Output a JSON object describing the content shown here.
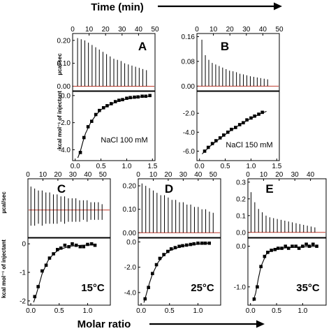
{
  "figure": {
    "top_axis_title": "Time (min)",
    "bottom_axis_title": "Molar ratio",
    "thermogram_ylabel": "µcal/sec",
    "binding_ylabel": "kcal mol⁻¹ of injectant"
  },
  "chart_data": [
    {
      "panel": "A",
      "type": "line",
      "label": "NaCl 100 mM",
      "thermogram": {
        "xlabel": "Time (min)",
        "xlim": [
          0,
          50
        ],
        "xticks": [
          0,
          10,
          20,
          30,
          40,
          50
        ],
        "ylabel": "µcal/sec",
        "ylim": [
          -0.02,
          0.23
        ],
        "yticks": [
          0.0,
          0.1,
          0.2
        ],
        "ytick_labels": [
          "0.00",
          "0.10",
          "0.20"
        ],
        "injection_start_min": 3,
        "injection_interval_min": 2.2,
        "baseline": 0.0,
        "peak_heights": [
          0.21,
          0.205,
          0.2,
          0.19,
          0.18,
          0.17,
          0.16,
          0.15,
          0.14,
          0.13,
          0.12,
          0.115,
          0.11,
          0.1,
          0.095,
          0.09,
          0.085,
          0.08,
          0.075,
          0.07
        ]
      },
      "binding": {
        "xlabel": "Molar ratio",
        "xlim": [
          -0.05,
          1.55
        ],
        "xticks": [
          0.0,
          0.5,
          1.0,
          1.5
        ],
        "ylabel": "kcal mol⁻¹ of injectant",
        "ylim": [
          -4.8,
          0.3
        ],
        "yticks": [
          0.0,
          -2.0,
          -4.0
        ],
        "ytick_labels": [
          "0.0",
          "-2.0",
          "-4.0"
        ],
        "points": [
          [
            0.1,
            -4.2
          ],
          [
            0.17,
            -3.1
          ],
          [
            0.25,
            -2.3
          ],
          [
            0.32,
            -1.9
          ],
          [
            0.4,
            -1.4
          ],
          [
            0.47,
            -1.1
          ],
          [
            0.55,
            -0.9
          ],
          [
            0.62,
            -0.75
          ],
          [
            0.7,
            -0.6
          ],
          [
            0.78,
            -0.45
          ],
          [
            0.85,
            -0.35
          ],
          [
            0.92,
            -0.3
          ],
          [
            1.0,
            -0.2
          ],
          [
            1.07,
            -0.15
          ],
          [
            1.15,
            -0.12
          ],
          [
            1.22,
            -0.1
          ],
          [
            1.3,
            -0.05
          ],
          [
            1.37,
            -0.05
          ],
          [
            1.45,
            0.0
          ]
        ],
        "fit": [
          [
            0.05,
            -4.6
          ],
          [
            0.1,
            -4.1
          ],
          [
            0.15,
            -3.4
          ],
          [
            0.2,
            -2.8
          ],
          [
            0.3,
            -2.0
          ],
          [
            0.4,
            -1.45
          ],
          [
            0.5,
            -1.05
          ],
          [
            0.6,
            -0.8
          ],
          [
            0.8,
            -0.45
          ],
          [
            1.0,
            -0.25
          ],
          [
            1.2,
            -0.12
          ],
          [
            1.45,
            -0.05
          ]
        ]
      }
    },
    {
      "panel": "B",
      "type": "line",
      "label": "NaCl 150 mM",
      "thermogram": {
        "xlabel": "Time (min)",
        "xlim": [
          0,
          50
        ],
        "xticks": [
          0,
          10,
          20,
          30,
          40,
          50
        ],
        "ylabel": "µcal/sec",
        "ylim": [
          -0.015,
          0.17
        ],
        "yticks": [
          0.0,
          0.08,
          0.16
        ],
        "ytick_labels": [
          "0.00",
          "0.08",
          "0.16"
        ],
        "injection_start_min": 3,
        "injection_interval_min": 2.1,
        "baseline": 0.0,
        "peak_heights": [
          0.15,
          0.1,
          0.085,
          0.075,
          0.07,
          0.065,
          0.06,
          0.055,
          0.05,
          0.048,
          0.045,
          0.04,
          0.038,
          0.035,
          0.032,
          0.03,
          0.028,
          0.026,
          0.024,
          0.022
        ]
      },
      "binding": {
        "xlabel": "Molar ratio",
        "xlim": [
          -0.05,
          1.55
        ],
        "xticks": [
          0.0,
          0.5,
          1.0,
          1.5
        ],
        "ylabel": "",
        "ylim": [
          -7.0,
          0.3
        ],
        "yticks": [
          -2.0,
          -4.0,
          -6.0
        ],
        "ytick_labels": [
          "-2.0",
          "-4.0",
          "-6.0"
        ],
        "points": [
          [
            0.1,
            -6.0
          ],
          [
            0.17,
            -5.6
          ],
          [
            0.25,
            -5.2
          ],
          [
            0.32,
            -4.9
          ],
          [
            0.4,
            -4.6
          ],
          [
            0.47,
            -4.3
          ],
          [
            0.55,
            -4.0
          ],
          [
            0.62,
            -3.7
          ],
          [
            0.7,
            -3.5
          ],
          [
            0.78,
            -3.2
          ],
          [
            0.85,
            -3.0
          ],
          [
            0.92,
            -2.7
          ],
          [
            1.0,
            -2.5
          ],
          [
            1.07,
            -2.3
          ],
          [
            1.15,
            -2.1
          ],
          [
            1.22,
            -1.9
          ]
        ],
        "fit": [
          [
            0.05,
            -6.3
          ],
          [
            0.2,
            -5.5
          ],
          [
            0.4,
            -4.65
          ],
          [
            0.6,
            -3.85
          ],
          [
            0.8,
            -3.15
          ],
          [
            1.0,
            -2.55
          ],
          [
            1.2,
            -2.0
          ],
          [
            1.3,
            -1.8
          ]
        ]
      }
    },
    {
      "panel": "C",
      "type": "line",
      "label": "15°C",
      "thermogram": {
        "xlabel": "Time (min)",
        "xlim": [
          0,
          55
        ],
        "xticks": [
          0,
          10,
          20,
          30,
          40,
          50
        ],
        "ylabel": "µcal/sec",
        "ylim": [
          -0.014,
          0.016
        ],
        "yticks": [],
        "ytick_labels": [],
        "injection_start_min": 2,
        "injection_interval_min": 2.5,
        "baseline": 0.0,
        "peak_heights": [
          0.012,
          0.011,
          0.01,
          0.01,
          0.009,
          0.009,
          0.008,
          0.008,
          0.007,
          0.007,
          0.006,
          0.006,
          0.006,
          0.005,
          0.005,
          0.005,
          0.004,
          0.004,
          0.004,
          0.003
        ],
        "negative_depths": [
          -0.008,
          -0.008,
          -0.007,
          -0.008,
          -0.007,
          -0.007,
          -0.007,
          -0.007,
          -0.006,
          -0.007,
          -0.006,
          -0.006,
          -0.006,
          -0.006,
          -0.005,
          -0.006,
          -0.005,
          -0.005,
          -0.005,
          -0.005
        ]
      },
      "binding": {
        "xlabel": "Molar ratio",
        "xlim": [
          -0.05,
          1.4
        ],
        "xticks": [
          0.0,
          0.5,
          1.0
        ],
        "ylabel": "kcal mol⁻¹ of injectant",
        "ylim": [
          -2.15,
          0.2
        ],
        "yticks": [
          0.0,
          -1.0,
          -2.0
        ],
        "ytick_labels": [
          "0",
          "-1",
          "-2"
        ],
        "points": [
          [
            0.07,
            -1.85
          ],
          [
            0.13,
            -1.5
          ],
          [
            0.2,
            -0.95
          ],
          [
            0.27,
            -0.75
          ],
          [
            0.33,
            -0.5
          ],
          [
            0.4,
            -0.35
          ],
          [
            0.47,
            -0.2
          ],
          [
            0.53,
            -0.15
          ],
          [
            0.6,
            -0.05
          ],
          [
            0.67,
            -0.1
          ],
          [
            0.73,
            0.0
          ],
          [
            0.8,
            -0.05
          ],
          [
            0.87,
            -0.1
          ],
          [
            0.93,
            -0.1
          ],
          [
            1.0,
            -0.02
          ],
          [
            1.07,
            0.0
          ],
          [
            1.13,
            -0.05
          ]
        ],
        "fit": [
          [
            0.05,
            -2.05
          ],
          [
            0.1,
            -1.75
          ],
          [
            0.15,
            -1.4
          ],
          [
            0.2,
            -1.05
          ],
          [
            0.3,
            -0.6
          ],
          [
            0.4,
            -0.35
          ],
          [
            0.5,
            -0.2
          ],
          [
            0.7,
            -0.08
          ],
          [
            0.9,
            -0.05
          ],
          [
            1.15,
            -0.03
          ]
        ]
      }
    },
    {
      "panel": "D",
      "type": "line",
      "label": "25°C",
      "thermogram": {
        "xlabel": "Time (min)",
        "xlim": [
          0,
          55
        ],
        "xticks": [
          0,
          10,
          20,
          30,
          40,
          50
        ],
        "ylabel": "µcal/sec",
        "ylim": [
          -0.02,
          0.23
        ],
        "yticks": [
          0.0,
          0.1,
          0.2
        ],
        "ytick_labels": [
          "0.00",
          "0.10",
          "0.20"
        ],
        "injection_start_min": 2.5,
        "injection_interval_min": 2.5,
        "baseline": 0.0,
        "peak_heights": [
          0.21,
          0.2,
          0.19,
          0.18,
          0.17,
          0.16,
          0.16,
          0.15,
          0.14,
          0.14,
          0.13,
          0.13,
          0.12,
          0.12,
          0.11,
          0.11,
          0.1,
          0.1,
          0.09,
          0.085
        ]
      },
      "binding": {
        "xlabel": "Molar ratio",
        "xlim": [
          -0.05,
          1.4
        ],
        "xticks": [
          0.0,
          0.5,
          1.0
        ],
        "ylabel": "",
        "ylim": [
          -5.0,
          0.3
        ],
        "yticks": [
          0.0,
          -2.0,
          -4.0
        ],
        "ytick_labels": [
          "0.0",
          "-2.0",
          "-4.0"
        ],
        "points": [
          [
            0.07,
            -4.5
          ],
          [
            0.13,
            -3.6
          ],
          [
            0.2,
            -2.5
          ],
          [
            0.27,
            -1.8
          ],
          [
            0.33,
            -1.3
          ],
          [
            0.4,
            -1.0
          ],
          [
            0.47,
            -0.75
          ],
          [
            0.53,
            -0.55
          ],
          [
            0.6,
            -0.45
          ],
          [
            0.67,
            -0.35
          ],
          [
            0.73,
            -0.3
          ],
          [
            0.8,
            -0.25
          ],
          [
            0.87,
            -0.2
          ],
          [
            0.93,
            -0.15
          ],
          [
            1.0,
            -0.1
          ],
          [
            1.07,
            -0.1
          ],
          [
            1.13,
            -0.1
          ],
          [
            1.2,
            -0.1
          ]
        ],
        "fit": [
          [
            0.05,
            -4.8
          ],
          [
            0.1,
            -4.0
          ],
          [
            0.15,
            -3.2
          ],
          [
            0.2,
            -2.55
          ],
          [
            0.3,
            -1.6
          ],
          [
            0.4,
            -1.05
          ],
          [
            0.5,
            -0.7
          ],
          [
            0.7,
            -0.35
          ],
          [
            0.9,
            -0.2
          ],
          [
            1.2,
            -0.1
          ]
        ]
      }
    },
    {
      "panel": "E",
      "type": "line",
      "label": "35°C",
      "thermogram": {
        "xlabel": "Time (min)",
        "xlim": [
          0,
          50
        ],
        "xticks": [
          0,
          10,
          20,
          30,
          40
        ],
        "ylabel": "µcal/sec",
        "ylim": [
          -0.03,
          0.32
        ],
        "yticks": [
          0.0,
          0.1,
          0.2,
          0.3
        ],
        "ytick_labels": [
          "0.0",
          "0.1",
          "0.2",
          "0.3"
        ],
        "injection_start_min": 2,
        "injection_interval_min": 2.4,
        "baseline": 0.0,
        "peak_heights": [
          0.24,
          0.18,
          0.14,
          0.12,
          0.1,
          0.09,
          0.085,
          0.08,
          0.075,
          0.07,
          0.065,
          0.06,
          0.055,
          0.05,
          0.045,
          0.04,
          0.035,
          0.03
        ]
      },
      "binding": {
        "xlabel": "Molar ratio",
        "xlim": [
          -0.05,
          1.45
        ],
        "xticks": [
          0.0,
          0.5,
          1.0
        ],
        "ylabel": "",
        "ylim": [
          -1.45,
          0.2
        ],
        "yticks": [
          0.0,
          -1.0
        ],
        "ytick_labels": [
          "0.0",
          "-1.0"
        ],
        "points": [
          [
            0.07,
            -1.3
          ],
          [
            0.13,
            -1.0
          ],
          [
            0.2,
            -0.5
          ],
          [
            0.27,
            -0.25
          ],
          [
            0.33,
            -0.15
          ],
          [
            0.4,
            -0.1
          ],
          [
            0.47,
            -0.08
          ],
          [
            0.53,
            -0.05
          ],
          [
            0.6,
            -0.05
          ],
          [
            0.67,
            0.0
          ],
          [
            0.73,
            -0.05
          ],
          [
            0.8,
            0.0
          ],
          [
            0.87,
            0.0
          ],
          [
            0.93,
            -0.05
          ],
          [
            1.0,
            0.0
          ],
          [
            1.07,
            0.05
          ],
          [
            1.13,
            0.0
          ],
          [
            1.2,
            0.05
          ],
          [
            1.27,
            0.0
          ]
        ],
        "fit": [
          [
            0.05,
            -1.35
          ],
          [
            0.1,
            -1.15
          ],
          [
            0.15,
            -0.8
          ],
          [
            0.2,
            -0.5
          ],
          [
            0.3,
            -0.2
          ],
          [
            0.4,
            -0.1
          ],
          [
            0.6,
            -0.05
          ],
          [
            0.9,
            -0.02
          ],
          [
            1.3,
            0.0
          ]
        ]
      }
    }
  ]
}
